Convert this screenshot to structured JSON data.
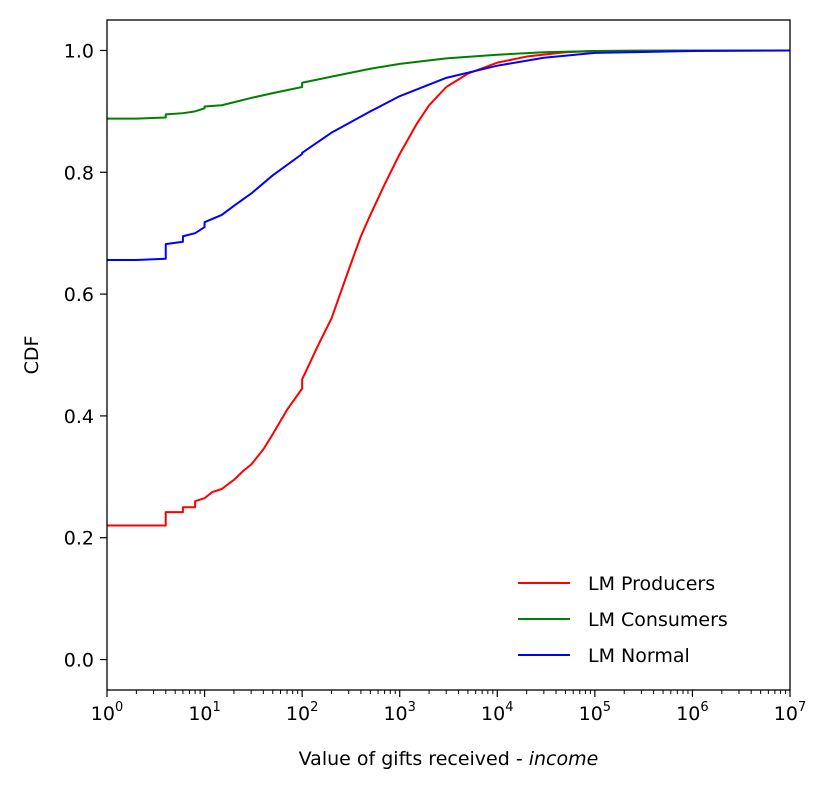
{
  "chart_data": {
    "type": "line",
    "x_scale": "log",
    "xlabel": "Value of gifts received - ",
    "xlabel_italic": "income",
    "ylabel": "CDF",
    "xlim": [
      1,
      10000000
    ],
    "ylim": [
      -0.05,
      1.05
    ],
    "grid": false,
    "legend_position": "bottom-right",
    "x_ticks": [
      {
        "value": 1,
        "base": "10",
        "exp": "0"
      },
      {
        "value": 10,
        "base": "10",
        "exp": "1"
      },
      {
        "value": 100,
        "base": "10",
        "exp": "2"
      },
      {
        "value": 1000,
        "base": "10",
        "exp": "3"
      },
      {
        "value": 10000,
        "base": "10",
        "exp": "4"
      },
      {
        "value": 100000,
        "base": "10",
        "exp": "5"
      },
      {
        "value": 1000000,
        "base": "10",
        "exp": "6"
      },
      {
        "value": 10000000,
        "base": "10",
        "exp": "7"
      }
    ],
    "y_ticks": [
      {
        "value": 0.0,
        "label": "0.0"
      },
      {
        "value": 0.2,
        "label": "0.2"
      },
      {
        "value": 0.4,
        "label": "0.4"
      },
      {
        "value": 0.6,
        "label": "0.6"
      },
      {
        "value": 0.8,
        "label": "0.8"
      },
      {
        "value": 1.0,
        "label": "1.0"
      }
    ],
    "series": [
      {
        "name": "LM Producers",
        "color": "#ff0000",
        "points": [
          [
            1,
            0.22
          ],
          [
            2,
            0.22
          ],
          [
            4,
            0.22
          ],
          [
            4,
            0.242
          ],
          [
            6,
            0.242
          ],
          [
            6,
            0.25
          ],
          [
            8,
            0.25
          ],
          [
            8,
            0.26
          ],
          [
            10,
            0.265
          ],
          [
            12,
            0.275
          ],
          [
            15,
            0.28
          ],
          [
            20,
            0.295
          ],
          [
            25,
            0.31
          ],
          [
            30,
            0.32
          ],
          [
            40,
            0.345
          ],
          [
            50,
            0.37
          ],
          [
            70,
            0.41
          ],
          [
            100,
            0.445
          ],
          [
            100,
            0.46
          ],
          [
            150,
            0.52
          ],
          [
            200,
            0.56
          ],
          [
            300,
            0.64
          ],
          [
            400,
            0.695
          ],
          [
            500,
            0.73
          ],
          [
            700,
            0.78
          ],
          [
            1000,
            0.83
          ],
          [
            1500,
            0.88
          ],
          [
            2000,
            0.91
          ],
          [
            3000,
            0.94
          ],
          [
            5000,
            0.962
          ],
          [
            10000,
            0.98
          ],
          [
            20000,
            0.99
          ],
          [
            50000,
            0.997
          ],
          [
            100000,
            0.999
          ],
          [
            1000000,
            1.0
          ],
          [
            10000000,
            1.0
          ]
        ]
      },
      {
        "name": "LM Consumers",
        "color": "#008000",
        "points": [
          [
            1,
            0.888
          ],
          [
            2,
            0.888
          ],
          [
            4,
            0.89
          ],
          [
            4,
            0.895
          ],
          [
            6,
            0.897
          ],
          [
            8,
            0.9
          ],
          [
            10,
            0.905
          ],
          [
            10,
            0.908
          ],
          [
            15,
            0.91
          ],
          [
            20,
            0.915
          ],
          [
            30,
            0.922
          ],
          [
            50,
            0.93
          ],
          [
            100,
            0.94
          ],
          [
            100,
            0.947
          ],
          [
            200,
            0.957
          ],
          [
            500,
            0.97
          ],
          [
            1000,
            0.978
          ],
          [
            3000,
            0.987
          ],
          [
            10000,
            0.993
          ],
          [
            30000,
            0.997
          ],
          [
            100000,
            0.999
          ],
          [
            1000000,
            1.0
          ],
          [
            10000000,
            1.0
          ]
        ]
      },
      {
        "name": "LM Normal",
        "color": "#0000ff",
        "points": [
          [
            1,
            0.656
          ],
          [
            2,
            0.656
          ],
          [
            4,
            0.658
          ],
          [
            4,
            0.682
          ],
          [
            6,
            0.686
          ],
          [
            6,
            0.695
          ],
          [
            8,
            0.7
          ],
          [
            10,
            0.71
          ],
          [
            10,
            0.718
          ],
          [
            15,
            0.73
          ],
          [
            20,
            0.745
          ],
          [
            30,
            0.765
          ],
          [
            50,
            0.795
          ],
          [
            100,
            0.83
          ],
          [
            100,
            0.832
          ],
          [
            200,
            0.865
          ],
          [
            500,
            0.9
          ],
          [
            1000,
            0.925
          ],
          [
            3000,
            0.955
          ],
          [
            10000,
            0.975
          ],
          [
            30000,
            0.988
          ],
          [
            100000,
            0.996
          ],
          [
            1000000,
            0.999
          ],
          [
            10000000,
            1.0
          ]
        ]
      }
    ]
  }
}
